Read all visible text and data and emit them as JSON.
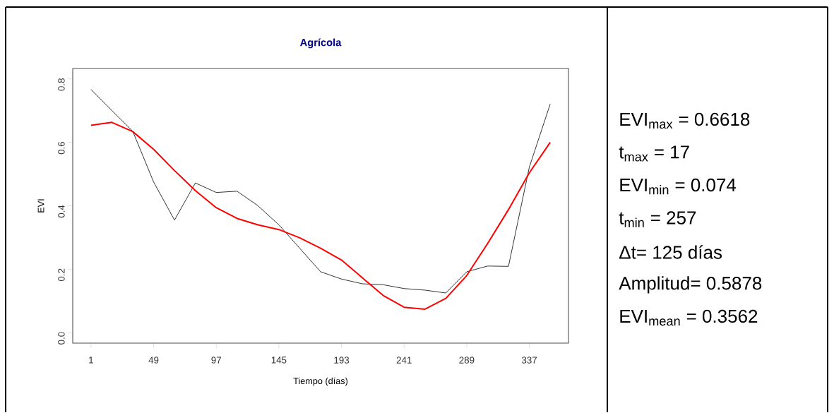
{
  "chart_data": {
    "type": "line",
    "title": "Agrícola",
    "xlabel": "Tiempo (días)",
    "ylabel": "EVI",
    "x": [
      1,
      17,
      33,
      49,
      65,
      81,
      97,
      113,
      129,
      145,
      161,
      177,
      193,
      209,
      225,
      241,
      257,
      273,
      289,
      305,
      321,
      337,
      353
    ],
    "series": [
      {
        "color": "#000000",
        "values": [
          0.767,
          0.7,
          0.635,
          0.475,
          0.355,
          0.472,
          0.442,
          0.446,
          0.4,
          0.34,
          0.266,
          0.192,
          0.169,
          0.154,
          0.151,
          0.139,
          0.134,
          0.125,
          0.192,
          0.21,
          0.209,
          0.522,
          0.721
        ]
      },
      {
        "color": "#ff0000",
        "values": [
          0.654,
          0.663,
          0.634,
          0.578,
          0.511,
          0.448,
          0.394,
          0.36,
          0.34,
          0.325,
          0.299,
          0.266,
          0.229,
          0.173,
          0.117,
          0.08,
          0.074,
          0.108,
          0.18,
          0.281,
          0.388,
          0.504,
          0.6
        ]
      }
    ],
    "xlim": [
      -13,
      367
    ],
    "ylim": [
      -0.033,
      0.833
    ],
    "xticks": [
      1,
      49,
      97,
      145,
      193,
      241,
      289,
      337
    ],
    "yticks": [
      {
        "value": 0,
        "label": "0.0"
      },
      {
        "value": 0.2,
        "label": "0.2"
      },
      {
        "value": 0.4,
        "label": "0.4"
      },
      {
        "value": 0.6,
        "label": "0.6"
      },
      {
        "value": 0.8,
        "label": "0.8"
      }
    ],
    "grid": false,
    "marker": "none",
    "line_style": "solid",
    "annotations": [
      "EVI$_{max}$ = 0.6618",
      "t$_{max}$ = 17",
      "EVI$_{min}$ = 0.074",
      "t$_{min}$ = 257",
      "Δt= 125 días",
      "Amplitud= 0.5878",
      "EVI$_{mean}$ = 0.3562"
    ]
  }
}
